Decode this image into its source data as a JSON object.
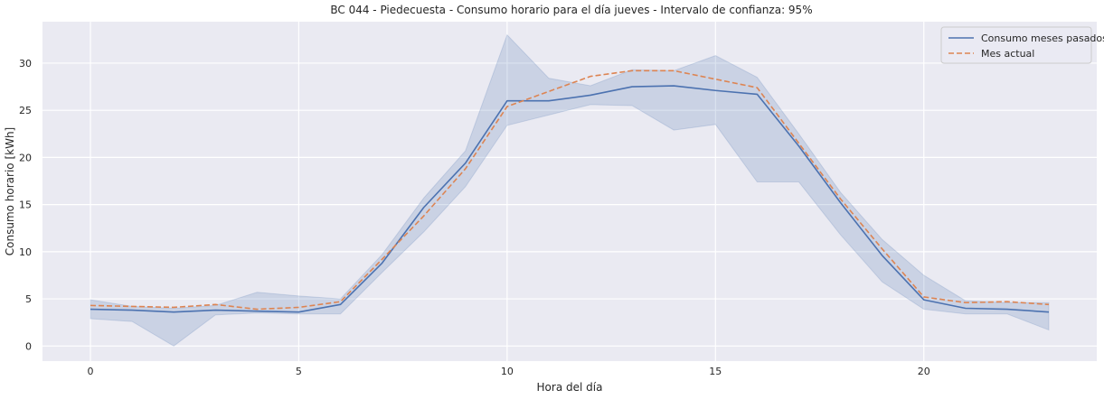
{
  "chart_data": {
    "type": "line",
    "title": "BC 044 - Piedecuesta - Consumo horario para el día jueves - Intervalo de confianza: 95%",
    "xlabel": "Hora del día",
    "ylabel": "Consumo horario [kWh]",
    "xlim": [
      -1.15,
      24.15
    ],
    "ylim": [
      -1.6,
      34.4
    ],
    "xticks": [
      0,
      5,
      10,
      15,
      20
    ],
    "yticks": [
      0,
      5,
      10,
      15,
      20,
      25,
      30
    ],
    "grid": true,
    "legend_position": "top-right",
    "x": [
      0,
      1,
      2,
      3,
      4,
      5,
      6,
      7,
      8,
      9,
      10,
      11,
      12,
      13,
      14,
      15,
      16,
      17,
      18,
      19,
      20,
      21,
      22,
      23
    ],
    "series": [
      {
        "name": "Consumo meses pasados",
        "style": "solid",
        "color": "#4c72b0",
        "values": [
          3.9,
          3.8,
          3.6,
          3.8,
          3.7,
          3.6,
          4.4,
          8.8,
          14.7,
          19.4,
          26.0,
          26.0,
          26.6,
          27.5,
          27.6,
          27.1,
          26.7,
          21.2,
          15.2,
          9.6,
          4.9,
          4.0,
          3.9,
          3.6
        ],
        "ci_lower": [
          2.9,
          2.6,
          0.0,
          3.3,
          3.5,
          3.4,
          3.4,
          7.8,
          12.1,
          16.9,
          23.4,
          24.5,
          25.6,
          25.5,
          22.9,
          23.5,
          17.4,
          17.4,
          11.8,
          6.8,
          3.9,
          3.4,
          3.4,
          1.7
        ],
        "ci_upper": [
          4.9,
          4.2,
          4.0,
          4.3,
          5.7,
          5.3,
          5.0,
          9.7,
          15.7,
          20.7,
          33.0,
          28.4,
          27.6,
          29.3,
          29.2,
          30.8,
          28.5,
          22.5,
          16.3,
          11.3,
          7.5,
          4.8,
          4.6,
          4.6
        ]
      },
      {
        "name": "Mes actual",
        "style": "dashed",
        "color": "#dd8452",
        "values": [
          4.3,
          4.2,
          4.1,
          4.4,
          3.9,
          4.1,
          4.7,
          9.2,
          13.8,
          18.8,
          25.4,
          27.0,
          28.6,
          29.2,
          29.2,
          28.3,
          27.4,
          21.5,
          15.6,
          10.3,
          5.2,
          4.6,
          4.7,
          4.4
        ]
      }
    ],
    "ci_color": "#4c72b0",
    "background_color": "#eaeaf2",
    "grid_color": "#ffffff"
  }
}
